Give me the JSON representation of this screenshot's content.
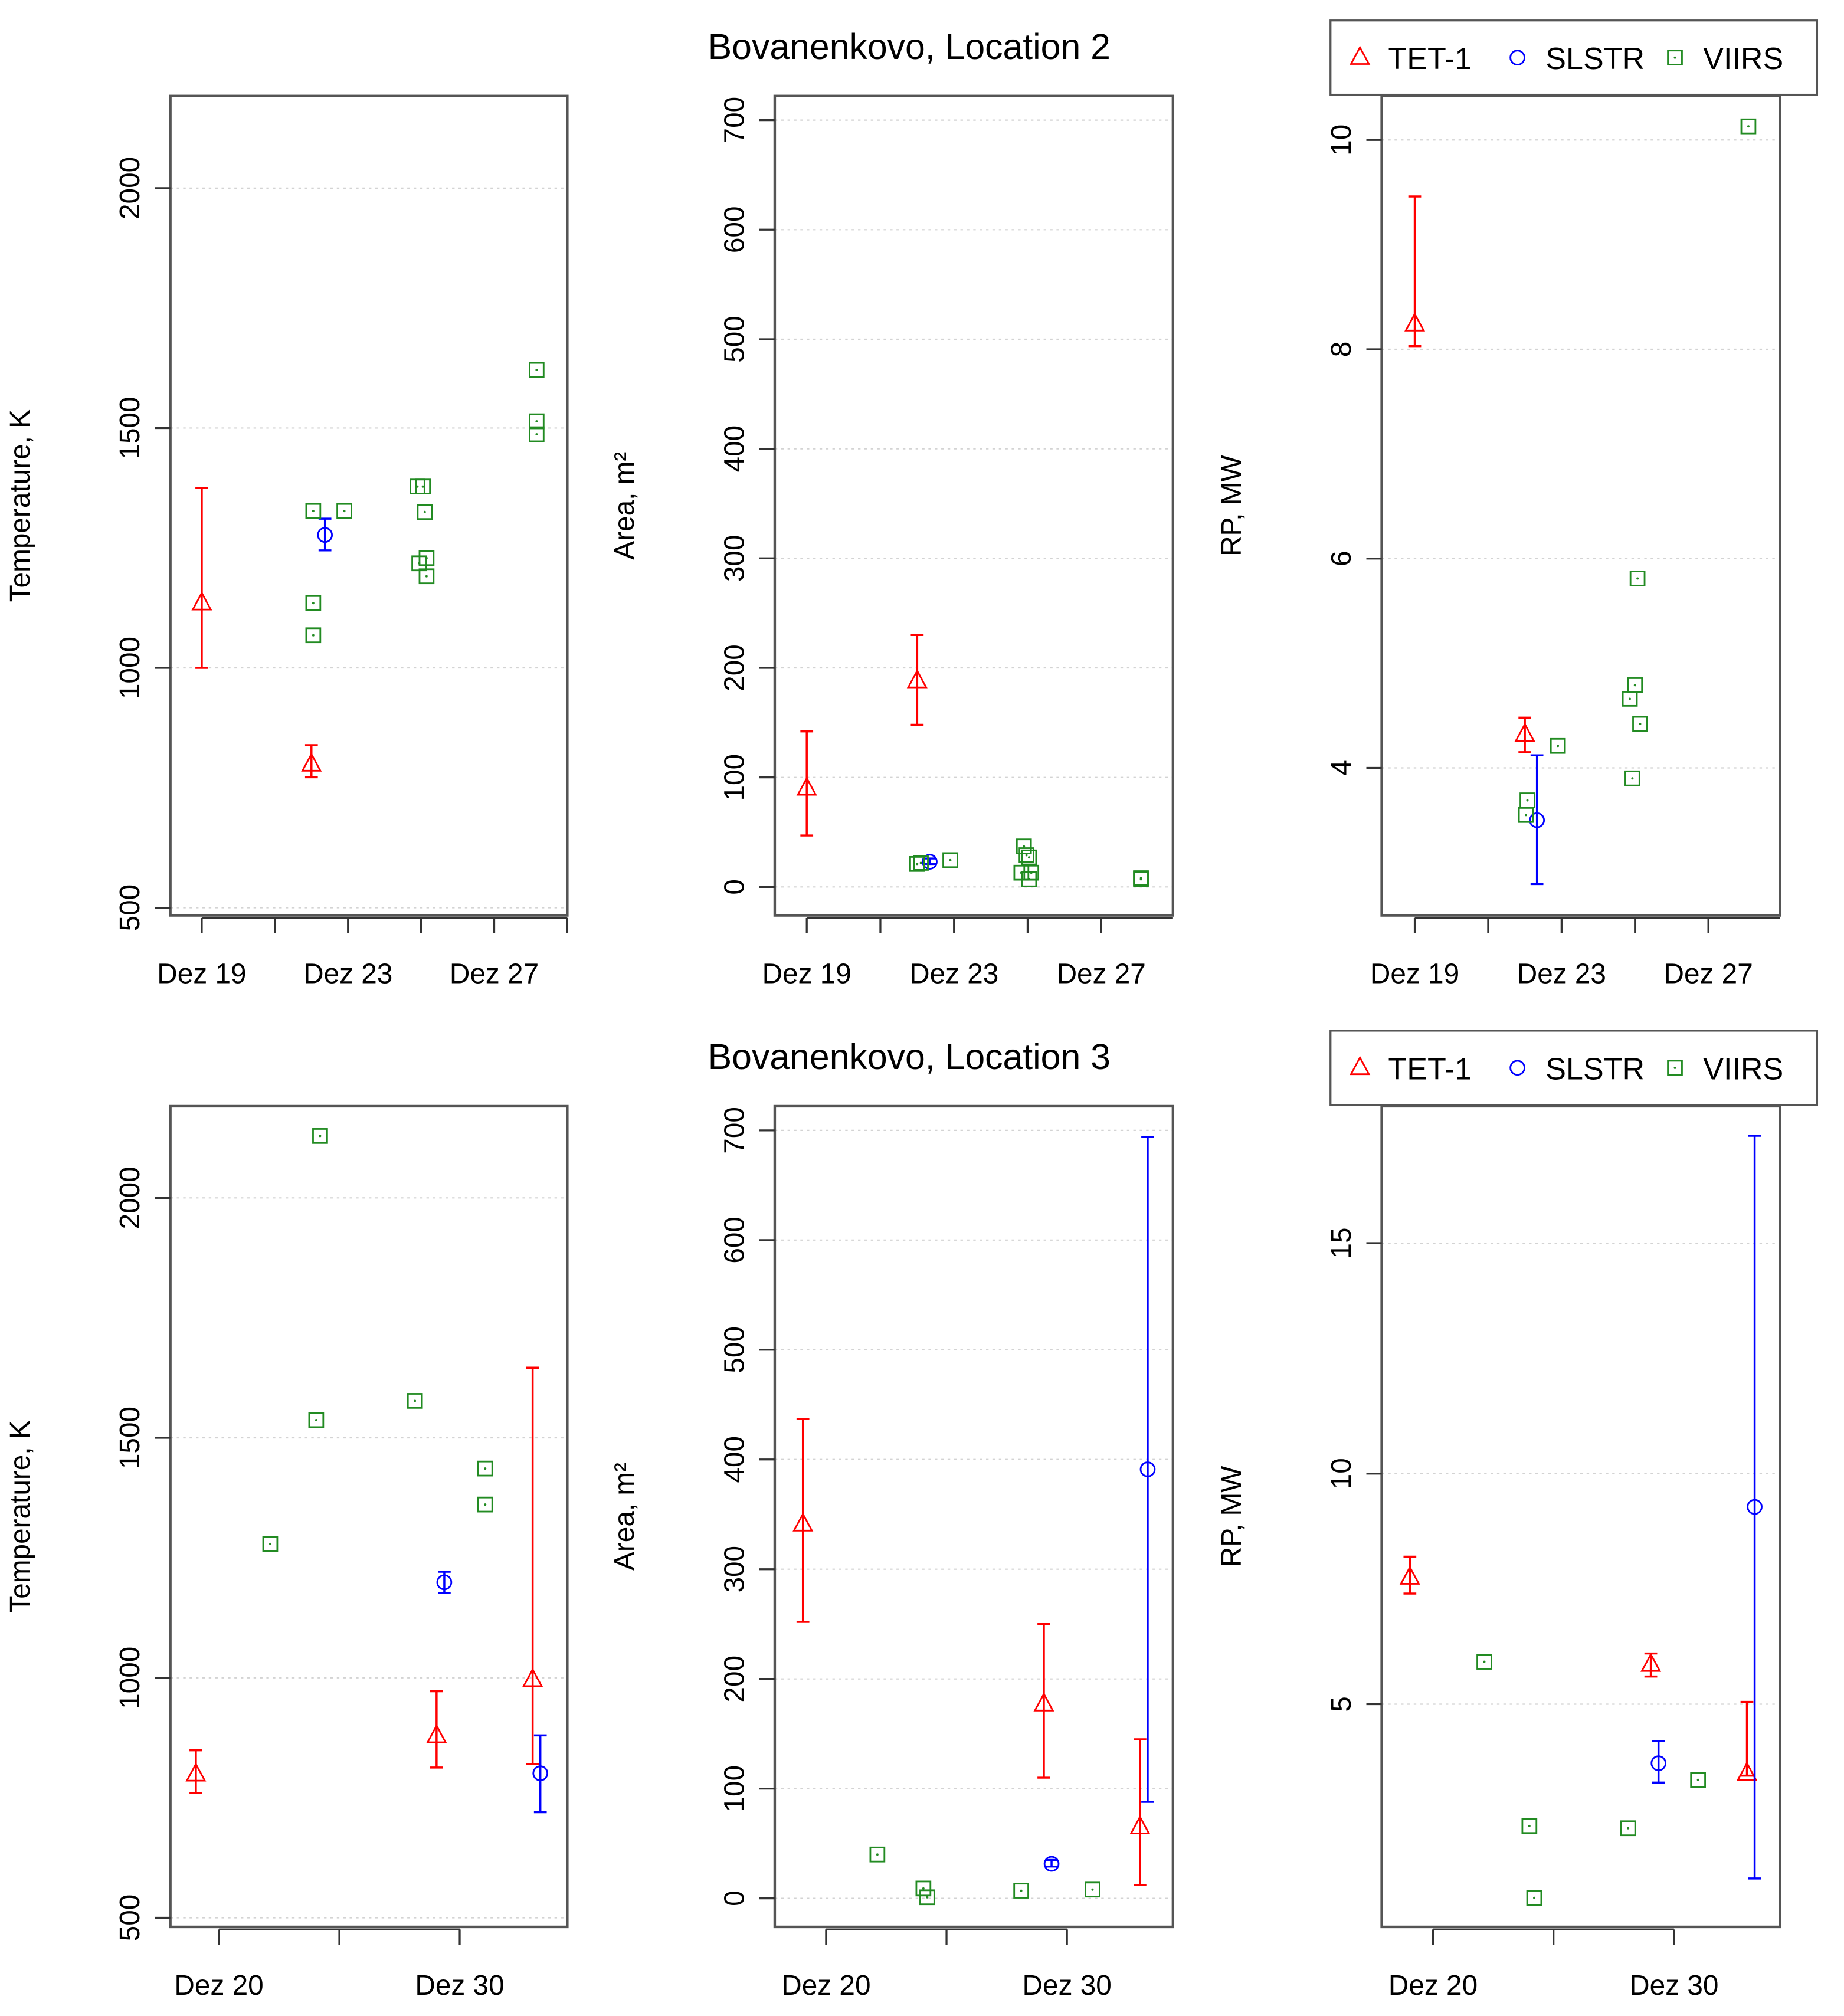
{
  "colors": {
    "TET-1": "#ff0000",
    "SLSTR": "#0000ff",
    "VIIRS": "#228b22",
    "grid": "#d3d3d3"
  },
  "titles": [
    "Bovanenkovo, Location 2",
    "Bovanenkovo, Location 3"
  ],
  "legend": {
    "items": [
      {
        "label": "TET-1",
        "marker": "triangle"
      },
      {
        "label": "SLSTR",
        "marker": "circle"
      },
      {
        "label": "VIIRS",
        "marker": "square"
      }
    ],
    "placement": "top-right"
  },
  "chart_data": [
    {
      "type": "scatter",
      "title": "",
      "ylabel": "Temperature, K",
      "xlabel": "",
      "xlim": [
        18.14,
        29.0
      ],
      "ylim": [
        484,
        2192
      ],
      "xticks": [
        19,
        21,
        23,
        25,
        27,
        29
      ],
      "xtick_labels": {
        "19": "Dez 19",
        "23": "Dez 23",
        "27": "Dez 27"
      },
      "yticks": [
        500,
        1000,
        1500,
        2000
      ],
      "ytick_labels": [
        "500",
        "1000",
        "1500",
        "2000"
      ],
      "grid": "horizontal-dotted",
      "series": [
        {
          "name": "TET-1",
          "points": [
            {
              "x": 19.0,
              "y": 1135,
              "lo": 1000,
              "hi": 1375
            },
            {
              "x": 22.0,
              "y": 799,
              "lo": 772,
              "hi": 839
            }
          ]
        },
        {
          "name": "SLSTR",
          "points": [
            {
              "x": 22.37,
              "y": 1277,
              "lo": 1245,
              "hi": 1311
            }
          ]
        },
        {
          "name": "VIIRS",
          "points": [
            {
              "x": 22.05,
              "y": 1327
            },
            {
              "x": 22.9,
              "y": 1327
            },
            {
              "x": 22.05,
              "y": 1135
            },
            {
              "x": 22.05,
              "y": 1068
            },
            {
              "x": 24.9,
              "y": 1378
            },
            {
              "x": 25.05,
              "y": 1378
            },
            {
              "x": 25.1,
              "y": 1325
            },
            {
              "x": 24.95,
              "y": 1218
            },
            {
              "x": 25.15,
              "y": 1229
            },
            {
              "x": 25.15,
              "y": 1191
            },
            {
              "x": 28.16,
              "y": 1621
            },
            {
              "x": 28.16,
              "y": 1514
            },
            {
              "x": 28.16,
              "y": 1487
            }
          ]
        }
      ]
    },
    {
      "type": "scatter",
      "title": "Bovanenkovo, Location 2",
      "ylabel": "Area, m²",
      "xlabel": "",
      "xlim": [
        18.13,
        28.95
      ],
      "ylim": [
        -26,
        722
      ],
      "xticks": [
        19,
        21,
        23,
        25,
        27,
        29
      ],
      "xtick_labels": {
        "19": "Dez 19",
        "23": "Dez 23",
        "27": "Dez 27"
      },
      "yticks": [
        0,
        100,
        200,
        300,
        400,
        500,
        600,
        700
      ],
      "ytick_labels": [
        "0",
        "100",
        "200",
        "300",
        "400",
        "500",
        "600",
        "700"
      ],
      "grid": "horizontal-dotted",
      "series": [
        {
          "name": "TET-1",
          "points": [
            {
              "x": 19.0,
              "y": 90,
              "lo": 47,
              "hi": 142
            },
            {
              "x": 22.0,
              "y": 188,
              "lo": 148,
              "hi": 230
            }
          ]
        },
        {
          "name": "SLSTR",
          "points": [
            {
              "x": 22.34,
              "y": 23,
              "lo": 21,
              "hi": 26
            }
          ]
        },
        {
          "name": "VIIRS",
          "points": [
            {
              "x": 22.0,
              "y": 21
            },
            {
              "x": 22.1,
              "y": 22
            },
            {
              "x": 22.9,
              "y": 24.5
            },
            {
              "x": 24.9,
              "y": 37
            },
            {
              "x": 24.97,
              "y": 29
            },
            {
              "x": 25.04,
              "y": 27
            },
            {
              "x": 24.83,
              "y": 13
            },
            {
              "x": 25.1,
              "y": 13
            },
            {
              "x": 25.04,
              "y": 7
            },
            {
              "x": 28.08,
              "y": 8
            },
            {
              "x": 28.08,
              "y": 7
            }
          ]
        }
      ]
    },
    {
      "type": "scatter",
      "title": "",
      "ylabel": "RP, MW",
      "xlabel": "",
      "xlim": [
        18.1,
        28.95
      ],
      "ylim": [
        2.59,
        10.42
      ],
      "xticks": [
        19,
        21,
        23,
        25,
        27,
        29
      ],
      "xtick_labels": {
        "19": "Dez 19",
        "23": "Dez 23",
        "27": "Dez 27"
      },
      "yticks": [
        4,
        6,
        8,
        10
      ],
      "ytick_labels": [
        "4",
        "6",
        "8",
        "10"
      ],
      "grid": "horizontal-dotted",
      "series": [
        {
          "name": "TET-1",
          "points": [
            {
              "x": 19.0,
              "y": 8.24,
              "lo": 8.03,
              "hi": 9.46
            },
            {
              "x": 22.0,
              "y": 4.32,
              "lo": 4.15,
              "hi": 4.48
            }
          ]
        },
        {
          "name": "SLSTR",
          "points": [
            {
              "x": 22.33,
              "y": 3.5,
              "lo": 2.89,
              "hi": 4.12
            }
          ]
        },
        {
          "name": "VIIRS",
          "points": [
            {
              "x": 22.07,
              "y": 3.69
            },
            {
              "x": 22.03,
              "y": 3.55
            },
            {
              "x": 22.9,
              "y": 4.21
            },
            {
              "x": 25.07,
              "y": 5.81
            },
            {
              "x": 25.0,
              "y": 4.79
            },
            {
              "x": 24.86,
              "y": 4.66
            },
            {
              "x": 25.14,
              "y": 4.42
            },
            {
              "x": 24.93,
              "y": 3.9
            },
            {
              "x": 28.09,
              "y": 10.13
            }
          ]
        }
      ]
    },
    {
      "type": "scatter",
      "title": "",
      "ylabel": "Temperature, K",
      "xlabel": "",
      "xlim": [
        17.98,
        34.47
      ],
      "ylim": [
        481,
        2191
      ],
      "xticks": [
        20,
        25,
        30
      ],
      "xtick_labels": {
        "20": "Dez 20",
        "30": "Dez 30"
      },
      "yticks": [
        500,
        1000,
        1500,
        2000
      ],
      "ytick_labels": [
        "500",
        "1000",
        "1500",
        "2000"
      ],
      "grid": "horizontal-dotted",
      "series": [
        {
          "name": "TET-1",
          "points": [
            {
              "x": 19.04,
              "y": 799,
              "lo": 760,
              "hi": 849
            },
            {
              "x": 29.04,
              "y": 879,
              "lo": 813,
              "hi": 972
            },
            {
              "x": 33.03,
              "y": 996,
              "lo": 820,
              "hi": 1646
            }
          ]
        },
        {
          "name": "SLSTR",
          "points": [
            {
              "x": 29.36,
              "y": 1199,
              "lo": 1177,
              "hi": 1221
            },
            {
              "x": 33.35,
              "y": 801,
              "lo": 720,
              "hi": 880
            }
          ]
        },
        {
          "name": "VIIRS",
          "points": [
            {
              "x": 24.2,
              "y": 2129
            },
            {
              "x": 22.13,
              "y": 1279
            },
            {
              "x": 24.04,
              "y": 1537
            },
            {
              "x": 28.14,
              "y": 1577
            },
            {
              "x": 31.06,
              "y": 1436
            },
            {
              "x": 31.06,
              "y": 1361
            }
          ]
        }
      ]
    },
    {
      "type": "scatter",
      "title": "Bovanenkovo, Location 3",
      "ylabel": "Area, m²",
      "xlabel": "",
      "xlim": [
        17.87,
        34.4
      ],
      "ylim": [
        -26,
        722
      ],
      "xticks": [
        20,
        25,
        30
      ],
      "xtick_labels": {
        "20": "Dez 20",
        "30": "Dez 30"
      },
      "yticks": [
        0,
        100,
        200,
        300,
        400,
        500,
        600,
        700
      ],
      "ytick_labels": [
        "0",
        "100",
        "200",
        "300",
        "400",
        "500",
        "600",
        "700"
      ],
      "grid": "horizontal-dotted",
      "series": [
        {
          "name": "TET-1",
          "points": [
            {
              "x": 19.04,
              "y": 341,
              "lo": 252,
              "hi": 437
            },
            {
              "x": 29.04,
              "y": 177,
              "lo": 110,
              "hi": 250
            },
            {
              "x": 33.03,
              "y": 65,
              "lo": 12,
              "hi": 145
            }
          ]
        },
        {
          "name": "SLSTR",
          "points": [
            {
              "x": 29.36,
              "y": 31.5,
              "lo": 29,
              "hi": 35
            },
            {
              "x": 33.35,
              "y": 391,
              "lo": 88,
              "hi": 694
            }
          ]
        },
        {
          "name": "VIIRS",
          "points": [
            {
              "x": 22.13,
              "y": 40
            },
            {
              "x": 24.04,
              "y": 9
            },
            {
              "x": 24.2,
              "y": 1
            },
            {
              "x": 28.1,
              "y": 7
            },
            {
              "x": 31.06,
              "y": 8
            }
          ]
        }
      ]
    },
    {
      "type": "scatter",
      "title": "",
      "ylabel": "RP, MW",
      "xlabel": "",
      "xlim": [
        17.87,
        34.4
      ],
      "ylim": [
        0.17,
        17.97
      ],
      "xticks": [
        20,
        25,
        30
      ],
      "xtick_labels": {
        "20": "Dez 20",
        "30": "Dez 30"
      },
      "yticks": [
        5,
        10,
        15
      ],
      "ytick_labels": [
        "5",
        "10",
        "15"
      ],
      "grid": "horizontal-dotted",
      "series": [
        {
          "name": "TET-1",
          "points": [
            {
              "x": 19.04,
              "y": 7.75,
              "lo": 7.4,
              "hi": 8.2
            },
            {
              "x": 29.04,
              "y": 5.86,
              "lo": 5.6,
              "hi": 6.1
            },
            {
              "x": 33.03,
              "y": 3.5,
              "lo": 3.45,
              "hi": 5.05
            }
          ]
        },
        {
          "name": "SLSTR",
          "points": [
            {
              "x": 29.36,
              "y": 3.72,
              "lo": 3.3,
              "hi": 4.2
            },
            {
              "x": 33.35,
              "y": 9.28,
              "lo": 1.22,
              "hi": 17.33
            }
          ]
        },
        {
          "name": "VIIRS",
          "points": [
            {
              "x": 22.13,
              "y": 5.92
            },
            {
              "x": 24.0,
              "y": 2.36
            },
            {
              "x": 24.2,
              "y": 0.8
            },
            {
              "x": 28.1,
              "y": 2.31
            },
            {
              "x": 31.0,
              "y": 3.36
            }
          ]
        }
      ]
    }
  ]
}
